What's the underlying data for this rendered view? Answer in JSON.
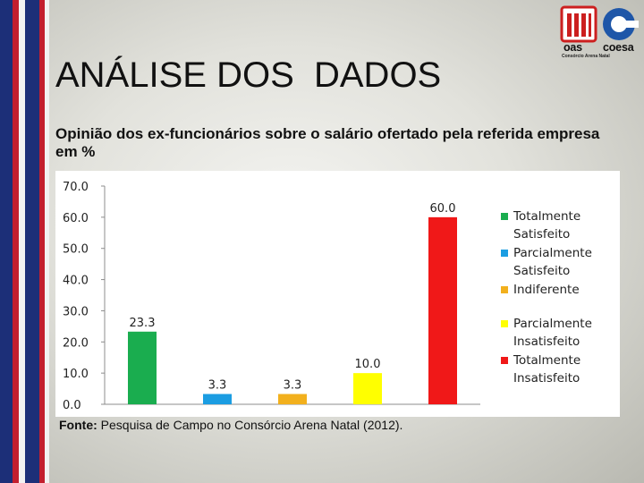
{
  "slide": {
    "title": "ANÁLISE DOS  DADOS",
    "subtitle": "Opinião dos ex-funcionários sobre o salário ofertado pela referida empresa em %",
    "source_label": "Fonte:",
    "source_text": " Pesquisa de Campo no Consórcio Arena Natal (2012)."
  },
  "logo": {
    "word1": "oas",
    "word2": "coesa",
    "subtext": "Consórcio Arena Natal",
    "colors": {
      "red": "#cc1f1f",
      "blue": "#1e56a8",
      "dark": "#111111"
    }
  },
  "chart_data": {
    "type": "bar",
    "categories": [
      "Totalmente Satisfeito",
      "Parcialmente Satisfeito",
      "Indiferente",
      "Parcialmente Insatisfeito",
      "Totalmente Insatisfeito"
    ],
    "values": [
      23.3,
      3.3,
      3.3,
      10.0,
      60.0
    ],
    "data_labels": [
      "23.3",
      "3.3",
      "3.3",
      "10.0",
      "60.0"
    ],
    "colors": [
      "#1aad4f",
      "#1b9de2",
      "#f2b01d",
      "#ffff00",
      "#f01818"
    ],
    "ylim": [
      0,
      70
    ],
    "yticks": [
      0,
      10,
      20,
      30,
      40,
      50,
      60,
      70
    ],
    "ytick_labels": [
      "0.0",
      "10.0",
      "20.0",
      "30.0",
      "40.0",
      "50.0",
      "60.0",
      "70.0"
    ],
    "legend": [
      {
        "lines": [
          "Totalmente",
          "Satisfeito"
        ],
        "color": "#1aad4f"
      },
      {
        "lines": [
          "Parcialmente",
          "Satisfeito"
        ],
        "color": "#1b9de2"
      },
      {
        "lines": [
          "Indiferente"
        ],
        "color": "#f2b01d"
      },
      {
        "lines": [
          "Parcialmente",
          "Insatisfeito"
        ],
        "color": "#ffff00"
      },
      {
        "lines": [
          "Totalmente",
          "Insatisfeito"
        ],
        "color": "#f01818"
      }
    ],
    "legend_position": "right",
    "grid": false,
    "xlabel": "",
    "ylabel": ""
  }
}
